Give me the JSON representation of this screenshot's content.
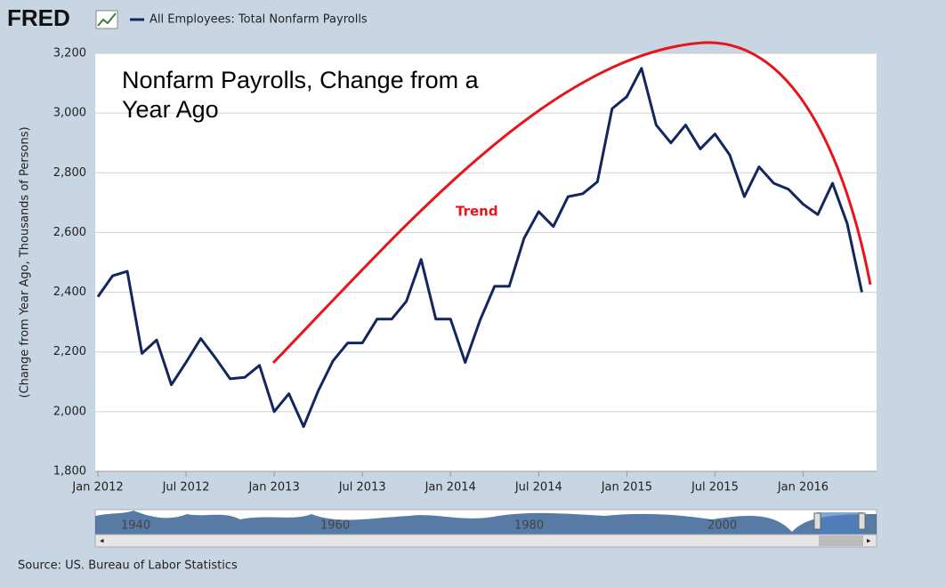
{
  "logo": "FRED",
  "source": "Source: US. Bureau of Labor Statistics",
  "navigator": {
    "labels": [
      "1940",
      "1960",
      "1980",
      "2000"
    ]
  },
  "chart_data": {
    "type": "line",
    "ylabel": "(Change from Year Ago, Thousands of Persons)",
    "annotations": [
      "Nonfarm Payrolls, Change from a Year Ago",
      "Trend"
    ],
    "x": [
      "2012-01",
      "2012-02",
      "2012-03",
      "2012-04",
      "2012-05",
      "2012-06",
      "2012-07",
      "2012-08",
      "2012-09",
      "2012-10",
      "2012-11",
      "2012-12",
      "2013-01",
      "2013-02",
      "2013-03",
      "2013-04",
      "2013-05",
      "2013-06",
      "2013-07",
      "2013-08",
      "2013-09",
      "2013-10",
      "2013-11",
      "2013-12",
      "2014-01",
      "2014-02",
      "2014-03",
      "2014-04",
      "2014-05",
      "2014-06",
      "2014-07",
      "2014-08",
      "2014-09",
      "2014-10",
      "2014-11",
      "2014-12",
      "2015-01",
      "2015-02",
      "2015-03",
      "2015-04",
      "2015-05",
      "2015-06",
      "2015-07",
      "2015-08",
      "2015-09",
      "2015-10",
      "2015-11",
      "2015-12",
      "2016-01",
      "2016-02",
      "2016-03",
      "2016-04",
      "2016-05"
    ],
    "series": [
      {
        "name": "All Employees: Total Nonfarm Payrolls",
        "color": "#13275e",
        "values": [
          2385,
          2455,
          2470,
          2195,
          2240,
          2090,
          2165,
          2245,
          2180,
          2110,
          2115,
          2155,
          2000,
          2060,
          1950,
          2070,
          2170,
          2230,
          2230,
          2310,
          2310,
          2370,
          2510,
          2310,
          2310,
          2165,
          2305,
          2420,
          2420,
          2580,
          2670,
          2620,
          2720,
          2730,
          2770,
          3015,
          3055,
          3150,
          2960,
          2900,
          2960,
          2880,
          2930,
          2860,
          2720,
          2820,
          2765,
          2745,
          2695,
          2660,
          2765,
          2630,
          2400
        ]
      }
    ],
    "xlim": [
      "2012-01",
      "2016-06"
    ],
    "xticks": [
      {
        "value": "2012-01",
        "label": "Jan 2012"
      },
      {
        "value": "2012-07",
        "label": "Jul 2012"
      },
      {
        "value": "2013-01",
        "label": "Jan 2013"
      },
      {
        "value": "2013-07",
        "label": "Jul 2013"
      },
      {
        "value": "2014-01",
        "label": "Jan 2014"
      },
      {
        "value": "2014-07",
        "label": "Jul 2014"
      },
      {
        "value": "2015-01",
        "label": "Jan 2015"
      },
      {
        "value": "2015-07",
        "label": "Jul 2015"
      },
      {
        "value": "2016-01",
        "label": "Jan 2016"
      }
    ],
    "ylim": [
      1800,
      3200
    ],
    "yticks": [
      {
        "value": 1800,
        "label": "1,800"
      },
      {
        "value": 2000,
        "label": "2,000"
      },
      {
        "value": 2200,
        "label": "2,200"
      },
      {
        "value": 2400,
        "label": "2,400"
      },
      {
        "value": 2600,
        "label": "2,600"
      },
      {
        "value": 2800,
        "label": "2,800"
      },
      {
        "value": 3000,
        "label": "3,000"
      },
      {
        "value": 3200,
        "label": "3,200"
      }
    ],
    "grid": true
  }
}
